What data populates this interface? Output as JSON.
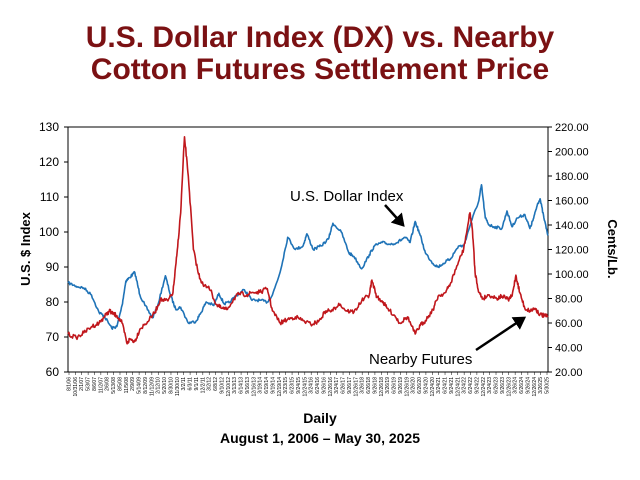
{
  "title_line1": "U.S. Dollar Index (DX) vs. Nearby",
  "title_line2": "Cotton Futures Settlement Price",
  "xlabel": "Daily",
  "date_range": "August 1, 2006 – May 30, 2025",
  "chart_data": {
    "type": "line",
    "title": "U.S. Dollar Index (DX) vs. Nearby Cotton Futures Settlement Price",
    "xlabel": "Daily",
    "ylabel_left": "U.S. $ Index",
    "ylabel_right": "Cents/Lb.",
    "ylim_left": [
      60,
      130
    ],
    "ylim_right": [
      20,
      220
    ],
    "yticks_left": [
      "60",
      "70",
      "80",
      "90",
      "100",
      "110",
      "120",
      "130"
    ],
    "yticks_right": [
      "20.00",
      "40.00",
      "60.00",
      "80.00",
      "100.00",
      "120.00",
      "140.00",
      "160.00",
      "180.00",
      "200.00",
      "220.00"
    ],
    "xlim": [
      2006.58,
      2025.41
    ],
    "x_tick_labels": [
      "8/1/06",
      "10/31/06",
      "2/1/07",
      "5/3/07",
      "8/6/07",
      "11/2/07",
      "2/6/08",
      "5/13/08",
      "8/5/08",
      "11/5/08",
      "2/9/09",
      "5/14/09",
      "8/12/09",
      "11/12/09",
      "2/12/10",
      "5/20/10",
      "8/30/10",
      "11/30/10",
      "3/2/11",
      "6/3/11",
      "9/1/11",
      "12/2/11",
      "3/2/12",
      "6/8/12",
      "9/10/12",
      "12/10/12",
      "3/13/13",
      "6/14/13",
      "9/16/13",
      "12/16/13",
      "3/19/14",
      "6/19/14",
      "9/19/14",
      "12/19/14",
      "3/23/15",
      "6/23/15",
      "9/24/15",
      "12/24/15",
      "3/24/16",
      "6/24/16",
      "9/26/16",
      "12/26/16",
      "3/24/17",
      "6/26/17",
      "9/26/17",
      "12/26/17",
      "3/26/18",
      "6/26/18",
      "9/26/18",
      "12/26/18",
      "3/26/19",
      "6/26/19",
      "9/26/19",
      "12/26/19",
      "3/26/20",
      "6/26/20",
      "9/24/20",
      "12/24/20",
      "3/24/21",
      "6/24/21",
      "9/24/21",
      "12/24/21",
      "3/24/22",
      "6/24/22",
      "9/24/22",
      "12/24/22",
      "3/24/23",
      "6/26/23",
      "9/26/23",
      "12/26/23",
      "3/26/24",
      "6/26/24",
      "9/26/24",
      "12/26/24",
      "3/26/25",
      "5/30/25"
    ],
    "grid": false,
    "legend": "none",
    "annotations": [
      "U.S. Dollar Index",
      "Nearby Futures"
    ],
    "series": [
      {
        "name": "U.S. Dollar Index",
        "axis": "left",
        "color": "#1f73b7",
        "points": [
          [
            2006.58,
            85.5
          ],
          [
            2006.9,
            84.5
          ],
          [
            2007.2,
            84
          ],
          [
            2007.5,
            82
          ],
          [
            2007.8,
            77
          ],
          [
            2008.0,
            76
          ],
          [
            2008.3,
            72.5
          ],
          [
            2008.5,
            73
          ],
          [
            2008.7,
            79
          ],
          [
            2008.85,
            86
          ],
          [
            2009.0,
            87
          ],
          [
            2009.2,
            88.5
          ],
          [
            2009.4,
            82
          ],
          [
            2009.6,
            79
          ],
          [
            2009.9,
            75.5
          ],
          [
            2010.1,
            79
          ],
          [
            2010.4,
            87.5
          ],
          [
            2010.6,
            82
          ],
          [
            2010.8,
            78
          ],
          [
            2011.0,
            78.5
          ],
          [
            2011.3,
            74
          ],
          [
            2011.6,
            74.5
          ],
          [
            2011.8,
            77
          ],
          [
            2012.0,
            80
          ],
          [
            2012.3,
            79
          ],
          [
            2012.5,
            82.5
          ],
          [
            2012.7,
            79.5
          ],
          [
            2012.9,
            79.8
          ],
          [
            2013.2,
            82
          ],
          [
            2013.5,
            83.5
          ],
          [
            2013.8,
            80.5
          ],
          [
            2014.1,
            80.5
          ],
          [
            2014.4,
            80
          ],
          [
            2014.6,
            82
          ],
          [
            2014.9,
            88.5
          ],
          [
            2015.2,
            98.5
          ],
          [
            2015.5,
            95
          ],
          [
            2015.8,
            96
          ],
          [
            2015.95,
            99.5
          ],
          [
            2016.2,
            95
          ],
          [
            2016.5,
            96
          ],
          [
            2016.8,
            98
          ],
          [
            2016.97,
            102.5
          ],
          [
            2017.3,
            100
          ],
          [
            2017.6,
            94
          ],
          [
            2017.8,
            93
          ],
          [
            2018.1,
            89.5
          ],
          [
            2018.4,
            93.5
          ],
          [
            2018.6,
            96
          ],
          [
            2018.9,
            97
          ],
          [
            2019.2,
            96.5
          ],
          [
            2019.5,
            97
          ],
          [
            2019.8,
            98.5
          ],
          [
            2020.0,
            97
          ],
          [
            2020.2,
            103
          ],
          [
            2020.4,
            99
          ],
          [
            2020.6,
            94
          ],
          [
            2020.9,
            91
          ],
          [
            2021.1,
            90
          ],
          [
            2021.4,
            91.5
          ],
          [
            2021.6,
            92.5
          ],
          [
            2021.9,
            96
          ],
          [
            2022.1,
            96
          ],
          [
            2022.4,
            103
          ],
          [
            2022.7,
            109
          ],
          [
            2022.8,
            113.5
          ],
          [
            2022.95,
            104
          ],
          [
            2023.1,
            102
          ],
          [
            2023.3,
            101.5
          ],
          [
            2023.6,
            101
          ],
          [
            2023.8,
            106
          ],
          [
            2024.0,
            101.5
          ],
          [
            2024.2,
            104
          ],
          [
            2024.5,
            105
          ],
          [
            2024.7,
            101
          ],
          [
            2024.85,
            104
          ],
          [
            2025.0,
            108
          ],
          [
            2025.1,
            109.5
          ],
          [
            2025.25,
            104
          ],
          [
            2025.41,
            99
          ]
        ]
      },
      {
        "name": "Nearby Futures",
        "axis": "right",
        "color": "#c0171c",
        "points": [
          [
            2006.58,
            51
          ],
          [
            2006.9,
            48
          ],
          [
            2007.2,
            52
          ],
          [
            2007.5,
            57
          ],
          [
            2007.8,
            60
          ],
          [
            2008.0,
            65
          ],
          [
            2008.2,
            70
          ],
          [
            2008.3,
            68
          ],
          [
            2008.5,
            66
          ],
          [
            2008.7,
            60
          ],
          [
            2008.9,
            43
          ],
          [
            2009.0,
            47
          ],
          [
            2009.2,
            45
          ],
          [
            2009.4,
            55
          ],
          [
            2009.7,
            61
          ],
          [
            2010.0,
            69
          ],
          [
            2010.2,
            79
          ],
          [
            2010.5,
            78
          ],
          [
            2010.7,
            85
          ],
          [
            2010.85,
            115
          ],
          [
            2011.0,
            150
          ],
          [
            2011.15,
            212
          ],
          [
            2011.3,
            180
          ],
          [
            2011.5,
            120
          ],
          [
            2011.7,
            100
          ],
          [
            2011.9,
            90
          ],
          [
            2012.1,
            90
          ],
          [
            2012.4,
            75
          ],
          [
            2012.6,
            72
          ],
          [
            2012.8,
            71
          ],
          [
            2013.1,
            80
          ],
          [
            2013.3,
            84
          ],
          [
            2013.6,
            83
          ],
          [
            2013.8,
            85
          ],
          [
            2014.1,
            85
          ],
          [
            2014.4,
            88
          ],
          [
            2014.6,
            70
          ],
          [
            2014.9,
            60
          ],
          [
            2015.2,
            63
          ],
          [
            2015.5,
            65
          ],
          [
            2015.8,
            62
          ],
          [
            2016.1,
            59
          ],
          [
            2016.4,
            61
          ],
          [
            2016.7,
            70
          ],
          [
            2016.97,
            70
          ],
          [
            2017.2,
            76
          ],
          [
            2017.5,
            70
          ],
          [
            2017.8,
            69
          ],
          [
            2018.1,
            78
          ],
          [
            2018.4,
            83
          ],
          [
            2018.5,
            95
          ],
          [
            2018.7,
            81
          ],
          [
            2018.9,
            78
          ],
          [
            2019.1,
            72
          ],
          [
            2019.4,
            66
          ],
          [
            2019.6,
            60
          ],
          [
            2019.9,
            65
          ],
          [
            2020.2,
            51
          ],
          [
            2020.4,
            58
          ],
          [
            2020.6,
            62
          ],
          [
            2020.9,
            71
          ],
          [
            2021.1,
            82
          ],
          [
            2021.4,
            85
          ],
          [
            2021.6,
            93
          ],
          [
            2021.9,
            110
          ],
          [
            2022.1,
            120
          ],
          [
            2022.35,
            150
          ],
          [
            2022.45,
            135
          ],
          [
            2022.55,
            101
          ],
          [
            2022.7,
            85
          ],
          [
            2022.85,
            80
          ],
          [
            2023.1,
            83
          ],
          [
            2023.4,
            80
          ],
          [
            2023.6,
            82
          ],
          [
            2023.85,
            79
          ],
          [
            2024.0,
            82
          ],
          [
            2024.15,
            99
          ],
          [
            2024.3,
            85
          ],
          [
            2024.5,
            72
          ],
          [
            2024.7,
            70
          ],
          [
            2024.9,
            72
          ],
          [
            2025.1,
            67
          ],
          [
            2025.25,
            66
          ],
          [
            2025.41,
            65
          ]
        ]
      }
    ]
  }
}
